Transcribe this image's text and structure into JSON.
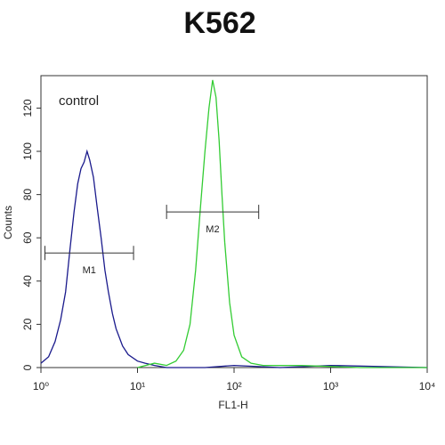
{
  "chart_data": {
    "type": "histogram-trace",
    "title": "K562",
    "xlabel": "FL1-H",
    "ylabel": "Counts",
    "annotation": "control",
    "xscale": "log",
    "xlim": [
      1,
      10000
    ],
    "ylim": [
      0,
      135
    ],
    "xticks": [
      {
        "value": 1,
        "label": "10⁰"
      },
      {
        "value": 10,
        "label": "10¹"
      },
      {
        "value": 100,
        "label": "10²"
      },
      {
        "value": 1000,
        "label": "10³"
      },
      {
        "value": 10000,
        "label": "10⁴"
      }
    ],
    "yticks": [
      0,
      20,
      40,
      60,
      80,
      100,
      120
    ],
    "series": [
      {
        "name": "control",
        "color": "#1a1a8c",
        "x": [
          1.0,
          1.2,
          1.4,
          1.6,
          1.8,
          2.0,
          2.2,
          2.4,
          2.6,
          2.8,
          3.0,
          3.2,
          3.5,
          3.8,
          4.2,
          4.6,
          5.0,
          5.5,
          6.0,
          7.0,
          8.0,
          10,
          12,
          15,
          20,
          50,
          100,
          300,
          1000,
          10000
        ],
        "values": [
          2,
          5,
          12,
          22,
          35,
          55,
          72,
          85,
          92,
          95,
          100,
          96,
          88,
          75,
          60,
          45,
          35,
          25,
          18,
          10,
          6,
          3,
          2,
          1,
          0,
          0,
          1,
          0,
          1,
          0
        ]
      },
      {
        "name": "K562",
        "color": "#33cc33",
        "x": [
          10,
          15,
          20,
          25,
          30,
          35,
          40,
          45,
          50,
          55,
          60,
          65,
          70,
          75,
          80,
          90,
          100,
          120,
          150,
          200,
          500,
          2000,
          10000
        ],
        "values": [
          0,
          2,
          1,
          3,
          8,
          20,
          45,
          75,
          100,
          120,
          133,
          125,
          105,
          80,
          58,
          30,
          15,
          5,
          2,
          1,
          1,
          0,
          0
        ]
      }
    ],
    "markers": [
      {
        "label": "M1",
        "x": [
          1.1,
          9.1
        ],
        "y": 53
      },
      {
        "label": "M2",
        "x": [
          20,
          180
        ],
        "y": 72
      }
    ]
  }
}
